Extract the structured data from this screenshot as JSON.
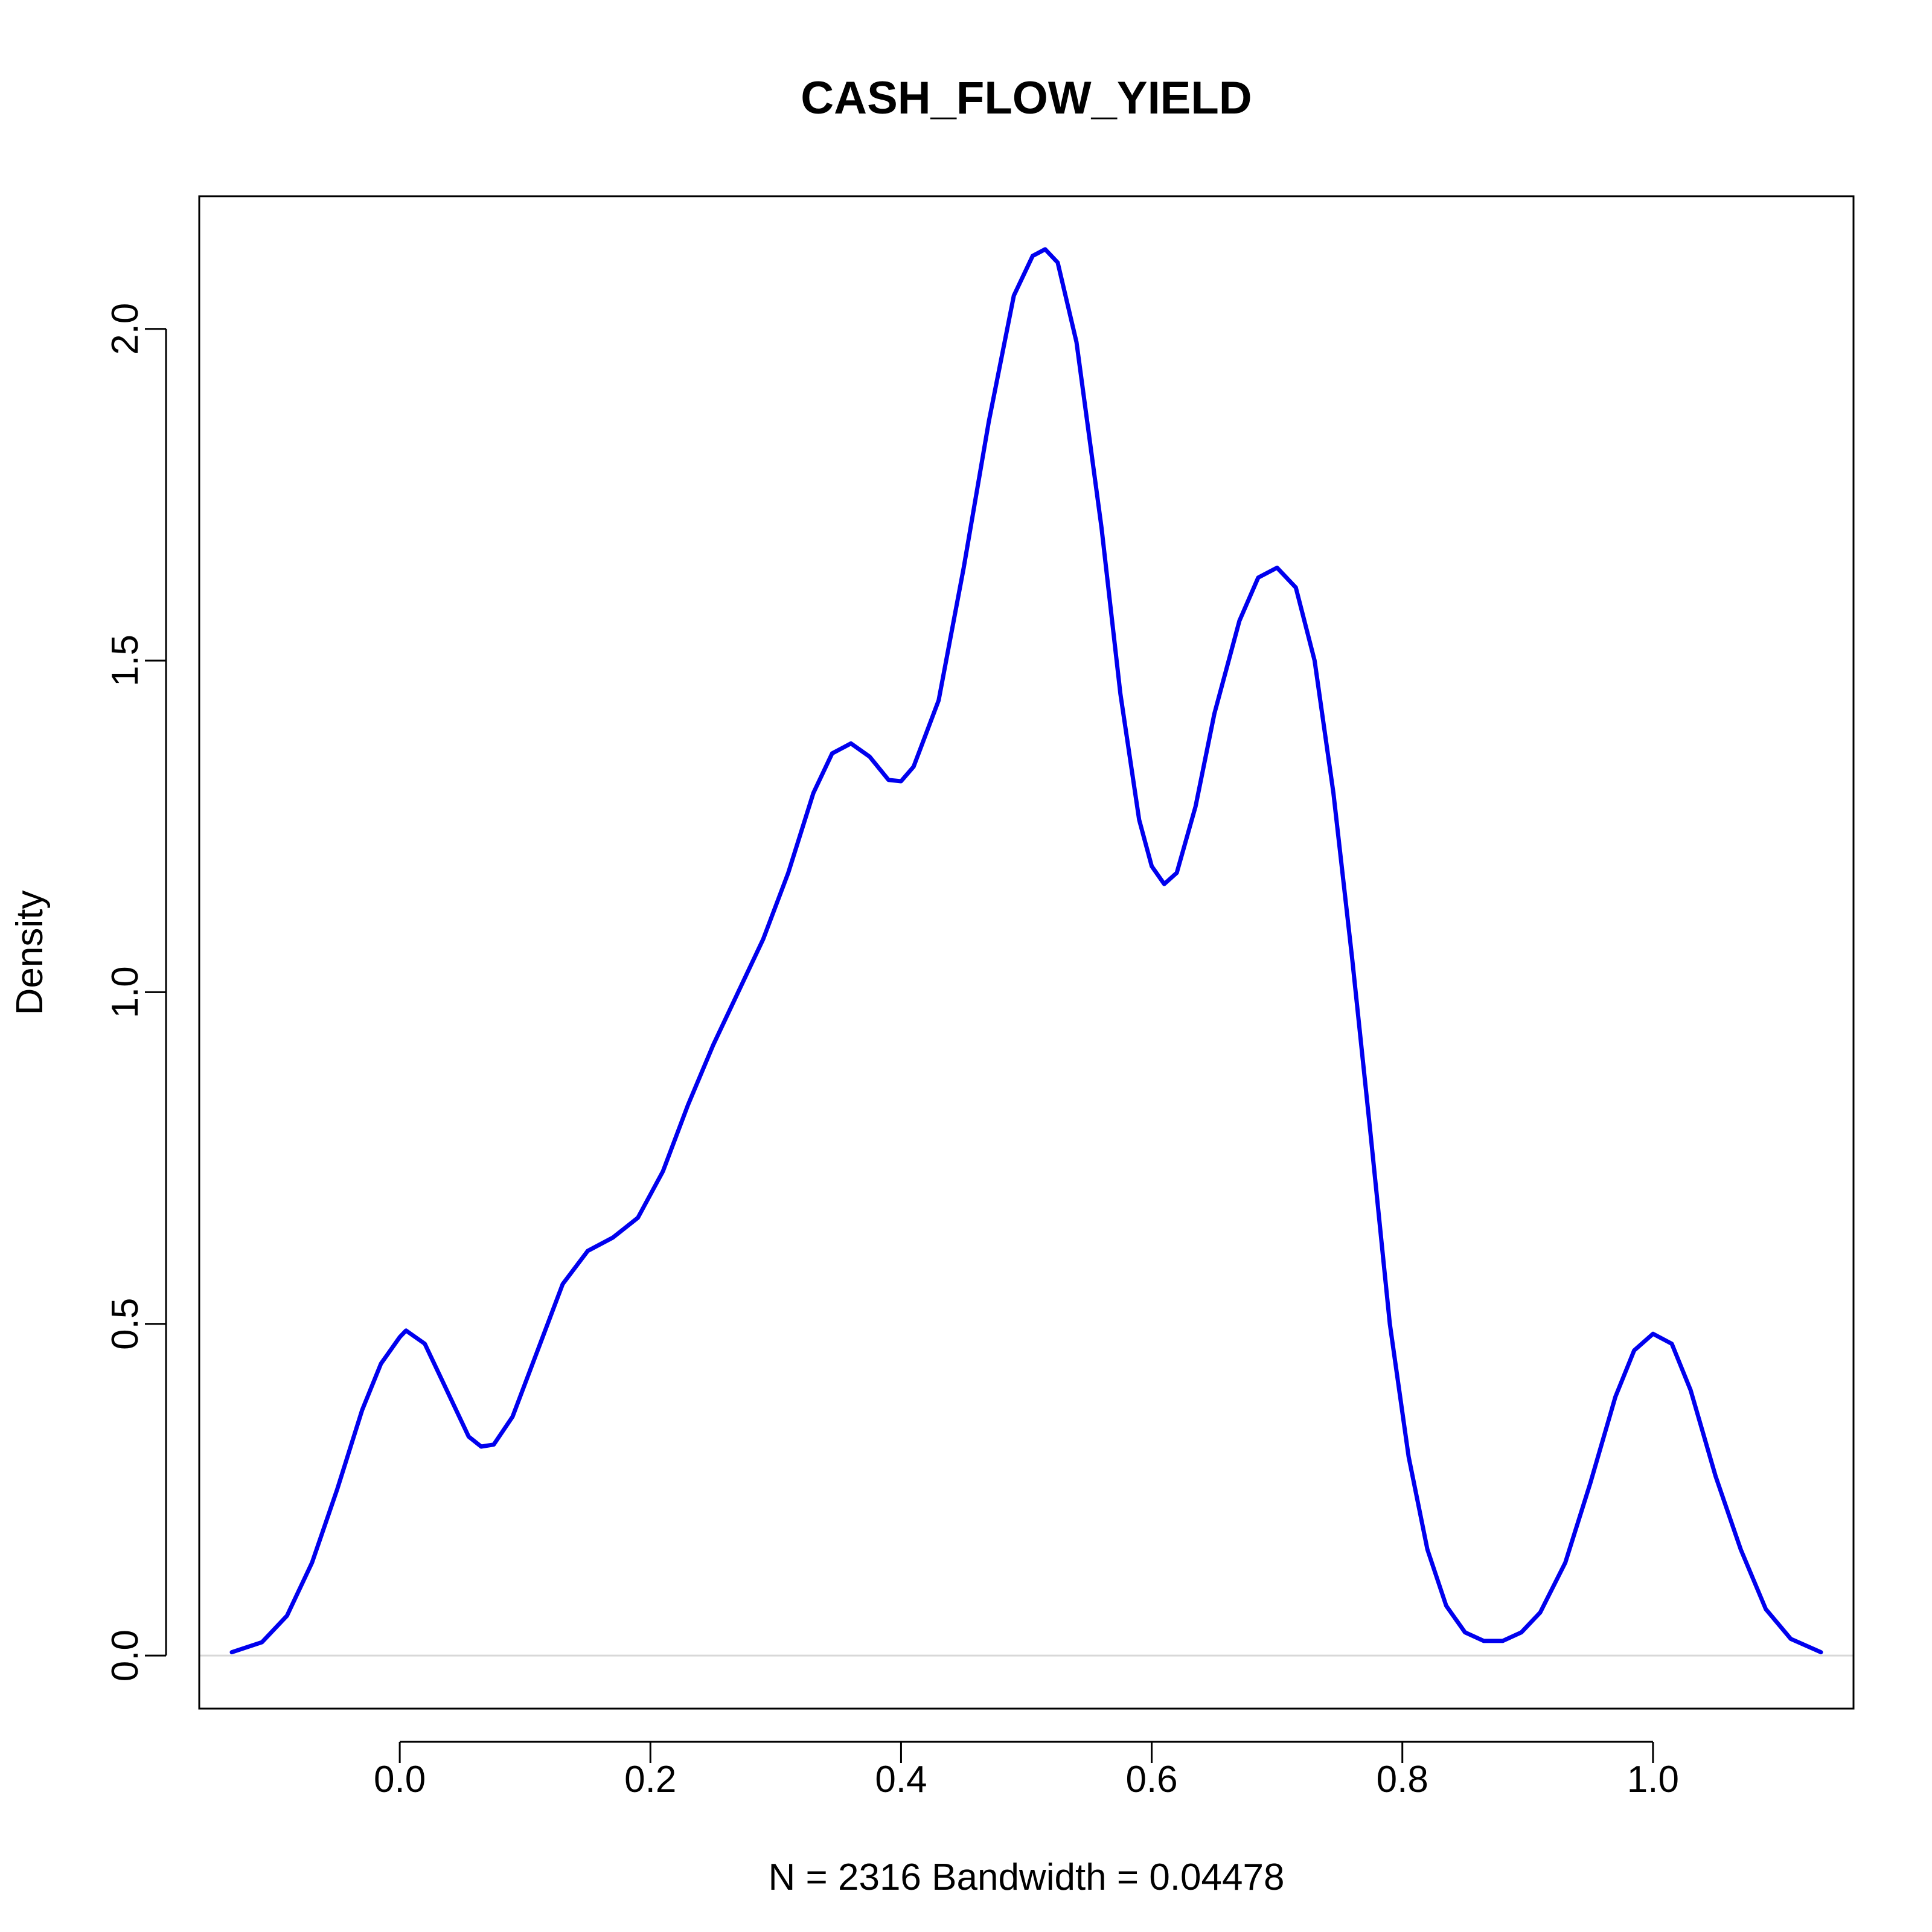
{
  "chart_data": {
    "type": "line",
    "title": "CASH_FLOW_YIELD",
    "xlabel": "N = 2316   Bandwidth = 0.04478",
    "ylabel": "Density",
    "xlim": [
      -0.16,
      1.16
    ],
    "ylim": [
      -0.08,
      2.2
    ],
    "x_ticks": [
      0.0,
      0.2,
      0.4,
      0.6,
      0.8,
      1.0
    ],
    "x_tick_labels": [
      "0.0",
      "0.2",
      "0.4",
      "0.6",
      "0.8",
      "1.0"
    ],
    "y_ticks": [
      0.0,
      0.5,
      1.0,
      1.5,
      2.0
    ],
    "y_tick_labels": [
      "0.0",
      "0.5",
      "1.0",
      "1.5",
      "2.0"
    ],
    "grid": false,
    "baseline_y": 0,
    "series": [
      {
        "color": "#0000ee",
        "points": [
          [
            -0.134,
            0.005
          ],
          [
            -0.11,
            0.02
          ],
          [
            -0.09,
            0.06
          ],
          [
            -0.07,
            0.14
          ],
          [
            -0.05,
            0.25
          ],
          [
            -0.03,
            0.37
          ],
          [
            -0.015,
            0.44
          ],
          [
            0.0,
            0.48
          ],
          [
            0.005,
            0.49
          ],
          [
            0.02,
            0.47
          ],
          [
            0.04,
            0.39
          ],
          [
            0.055,
            0.33
          ],
          [
            0.065,
            0.315
          ],
          [
            0.075,
            0.318
          ],
          [
            0.09,
            0.36
          ],
          [
            0.11,
            0.46
          ],
          [
            0.13,
            0.56
          ],
          [
            0.15,
            0.61
          ],
          [
            0.17,
            0.63
          ],
          [
            0.19,
            0.66
          ],
          [
            0.21,
            0.73
          ],
          [
            0.23,
            0.83
          ],
          [
            0.25,
            0.92
          ],
          [
            0.27,
            1.0
          ],
          [
            0.29,
            1.08
          ],
          [
            0.31,
            1.18
          ],
          [
            0.33,
            1.3
          ],
          [
            0.345,
            1.36
          ],
          [
            0.36,
            1.375
          ],
          [
            0.375,
            1.355
          ],
          [
            0.39,
            1.32
          ],
          [
            0.4,
            1.318
          ],
          [
            0.41,
            1.34
          ],
          [
            0.43,
            1.44
          ],
          [
            0.45,
            1.64
          ],
          [
            0.47,
            1.86
          ],
          [
            0.49,
            2.05
          ],
          [
            0.505,
            2.11
          ],
          [
            0.515,
            2.12
          ],
          [
            0.525,
            2.1
          ],
          [
            0.54,
            1.98
          ],
          [
            0.56,
            1.7
          ],
          [
            0.575,
            1.45
          ],
          [
            0.59,
            1.26
          ],
          [
            0.6,
            1.19
          ],
          [
            0.61,
            1.163
          ],
          [
            0.62,
            1.18
          ],
          [
            0.635,
            1.28
          ],
          [
            0.65,
            1.42
          ],
          [
            0.67,
            1.56
          ],
          [
            0.685,
            1.625
          ],
          [
            0.7,
            1.64
          ],
          [
            0.715,
            1.61
          ],
          [
            0.73,
            1.5
          ],
          [
            0.745,
            1.3
          ],
          [
            0.76,
            1.05
          ],
          [
            0.775,
            0.78
          ],
          [
            0.79,
            0.5
          ],
          [
            0.805,
            0.3
          ],
          [
            0.82,
            0.16
          ],
          [
            0.835,
            0.075
          ],
          [
            0.85,
            0.035
          ],
          [
            0.865,
            0.022
          ],
          [
            0.88,
            0.022
          ],
          [
            0.895,
            0.035
          ],
          [
            0.91,
            0.065
          ],
          [
            0.93,
            0.14
          ],
          [
            0.95,
            0.26
          ],
          [
            0.97,
            0.39
          ],
          [
            0.985,
            0.46
          ],
          [
            1.0,
            0.485
          ],
          [
            1.015,
            0.47
          ],
          [
            1.03,
            0.4
          ],
          [
            1.05,
            0.27
          ],
          [
            1.07,
            0.16
          ],
          [
            1.09,
            0.07
          ],
          [
            1.11,
            0.025
          ],
          [
            1.134,
            0.005
          ]
        ]
      }
    ]
  }
}
